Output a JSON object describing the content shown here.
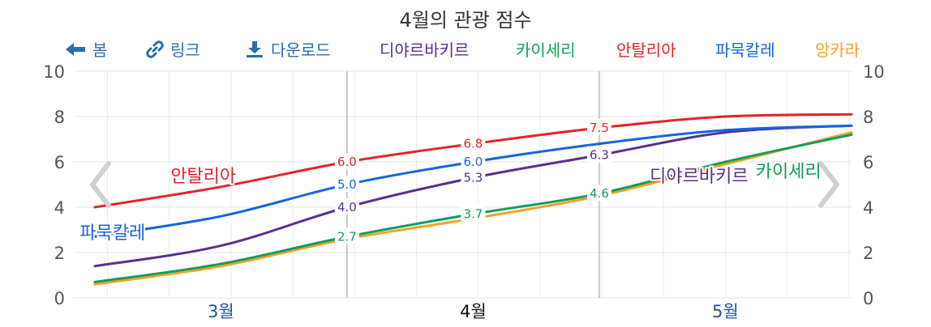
{
  "title": "4월의 관광 점수",
  "toolbar": {
    "home_label": "봄",
    "link_label": "링크",
    "download_label": "다운로드"
  },
  "legend": [
    {
      "name": "디야르바키르",
      "color": "#5b2f8f"
    },
    {
      "name": "카이세리",
      "color": "#129c5a"
    },
    {
      "name": "안탈리아",
      "color": "#e3222b"
    },
    {
      "name": "파묵칼레",
      "color": "#1565e0"
    },
    {
      "name": "앙카라",
      "color": "#f0a327"
    }
  ],
  "chart_data": {
    "type": "line",
    "title": "4월의 관광 점수",
    "x_ticks": [
      "3월",
      "4월",
      "5월"
    ],
    "x": [
      0,
      0.5,
      1,
      1.5,
      2,
      2.5,
      3
    ],
    "ylim": [
      0,
      10
    ],
    "y_ticks": [
      "0",
      "2",
      "4",
      "6",
      "8",
      "10"
    ],
    "grid": true,
    "legend_position": "top",
    "series": [
      {
        "name": "디야르바키르",
        "color": "#5b2f8f",
        "values": [
          1.4,
          2.3,
          4.0,
          5.3,
          6.3,
          7.3,
          7.6
        ]
      },
      {
        "name": "카이세리",
        "color": "#129c5a",
        "values": [
          0.7,
          1.5,
          2.7,
          3.7,
          4.6,
          6.0,
          7.2
        ]
      },
      {
        "name": "안탈리아",
        "color": "#e3222b",
        "values": [
          4.0,
          4.9,
          6.0,
          6.8,
          7.5,
          8.0,
          8.1
        ]
      },
      {
        "name": "파묵칼레",
        "color": "#1565e0",
        "values": [
          2.7,
          3.6,
          5.0,
          6.0,
          6.8,
          7.4,
          7.6
        ]
      },
      {
        "name": "앙카라",
        "color": "#f0a327",
        "values": [
          0.6,
          1.4,
          2.6,
          3.5,
          4.5,
          5.9,
          7.3
        ]
      }
    ],
    "point_labels": [
      {
        "series": 2,
        "index": 2,
        "text": "6.0"
      },
      {
        "series": 2,
        "index": 3,
        "text": "6.8"
      },
      {
        "series": 2,
        "index": 4,
        "text": "7.5"
      },
      {
        "series": 3,
        "index": 2,
        "text": "5.0"
      },
      {
        "series": 3,
        "index": 3,
        "text": "6.0"
      },
      {
        "series": 0,
        "index": 2,
        "text": "4.0"
      },
      {
        "series": 0,
        "index": 3,
        "text": "5.3"
      },
      {
        "series": 0,
        "index": 4,
        "text": "6.3"
      },
      {
        "series": 1,
        "index": 2,
        "text": "2.7"
      },
      {
        "series": 1,
        "index": 3,
        "text": "3.7"
      },
      {
        "series": 1,
        "index": 4,
        "text": "4.6"
      }
    ],
    "series_annotations": [
      {
        "series": 2,
        "text": "안탈리아",
        "x": 0.3,
        "y": 5.4
      },
      {
        "series": 3,
        "text": "파묵칼레",
        "x": -0.06,
        "y": 2.9
      },
      {
        "series": 0,
        "text": "디야르바키르",
        "x": 2.2,
        "y": 5.4
      },
      {
        "series": 1,
        "text": "카이세리",
        "x": 2.62,
        "y": 5.6
      }
    ]
  }
}
